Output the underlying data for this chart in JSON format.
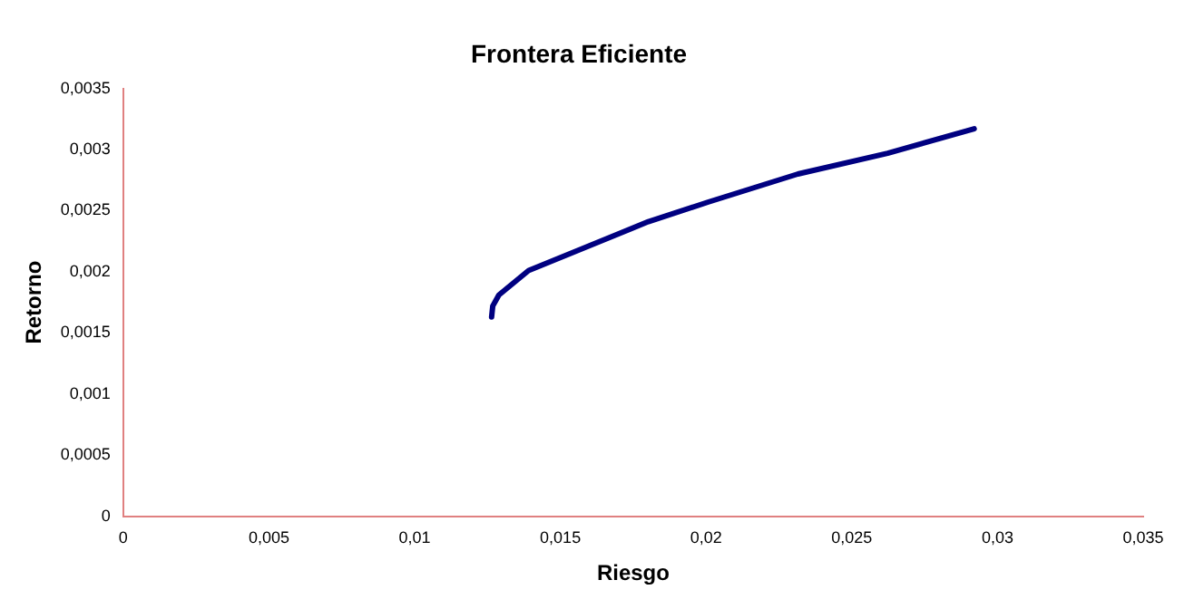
{
  "chart_data": {
    "type": "line",
    "title": "Frontera Eficiente",
    "xlabel": "Riesgo",
    "ylabel": "Retorno",
    "series": [
      {
        "color": "#000080",
        "x": [
          0.01264,
          0.01268,
          0.01289,
          0.01391,
          0.01576,
          0.01802,
          0.02007,
          0.02315,
          0.02623,
          0.0292
        ],
        "values": [
          0.00163,
          0.00172,
          0.00181,
          0.00201,
          0.00219,
          0.00241,
          0.00257,
          0.0028,
          0.00297,
          0.00317
        ]
      }
    ],
    "xlim": [
      0,
      0.035
    ],
    "xticks": [
      0,
      {
        "value": 0.005,
        "label": "0,005"
      },
      {
        "value": 0.01,
        "label": "0,01"
      },
      {
        "value": 0.015,
        "label": "0,015"
      },
      {
        "value": 0.02,
        "label": "0,02"
      },
      {
        "value": 0.025,
        "label": "0,025"
      },
      {
        "value": 0.03,
        "label": "0,03"
      },
      {
        "value": 0.035,
        "label": "0,035"
      }
    ],
    "ylim": [
      0,
      0.0035
    ],
    "yticks": [
      0,
      {
        "value": 0.0005,
        "label": "0,0005"
      },
      {
        "value": 0.001,
        "label": "0,001"
      },
      {
        "value": 0.0015,
        "label": "0,0015"
      },
      {
        "value": 0.002,
        "label": "0,002"
      },
      {
        "value": 0.0025,
        "label": "0,0025"
      },
      {
        "value": 0.003,
        "label": "0,003"
      },
      {
        "value": 0.0035,
        "label": "0,0035"
      }
    ],
    "grid": false,
    "legend": false,
    "marker": "none",
    "line_style": "solid"
  }
}
